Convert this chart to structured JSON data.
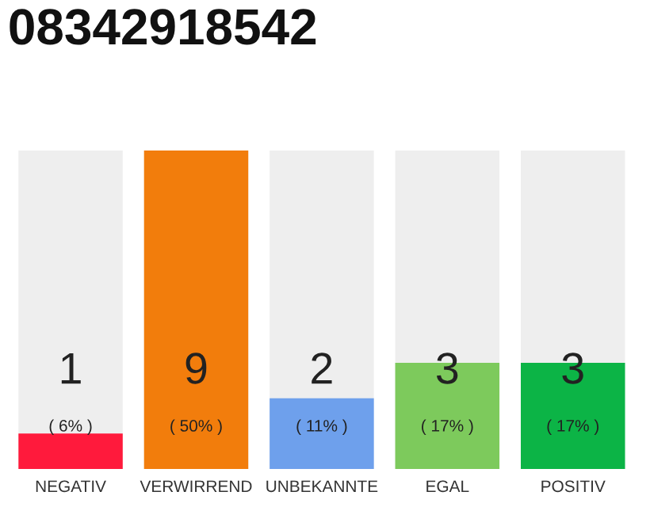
{
  "chart_data": {
    "type": "bar",
    "title": "08342918542",
    "categories": [
      "NEGATIV",
      "VERWIRREND",
      "UNBEKANNTE",
      "EGAL",
      "POSITIV"
    ],
    "values": [
      1,
      9,
      2,
      3,
      3
    ],
    "colors": [
      "#ff1a3c",
      "#f27d0c",
      "#6ea0ec",
      "#7dca5c",
      "#0cb446"
    ],
    "data_labels": true,
    "annotations": [
      "( 6% )",
      "( 50% )",
      "( 11% )",
      "( 17% )",
      "( 17% )"
    ],
    "ylim": [
      0,
      9
    ],
    "tick_labels": "x",
    "grid": false,
    "legend": false
  }
}
